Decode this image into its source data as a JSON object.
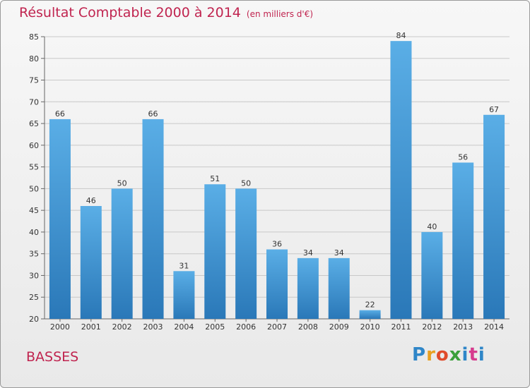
{
  "header": {
    "title": "Résultat Comptable 2000 à 2014",
    "subtitle": "(en milliers d'€)"
  },
  "footer": {
    "commune": "BASSES",
    "logo": "Proxiti"
  },
  "colors": {
    "bar_top": "#5aaee6",
    "bar_bottom": "#2a78b8",
    "title": "#c0244f",
    "grid": "#c8c8c8"
  },
  "chart_data": {
    "type": "bar",
    "categories": [
      "2000",
      "2001",
      "2002",
      "2003",
      "2004",
      "2005",
      "2006",
      "2007",
      "2008",
      "2009",
      "2010",
      "2011",
      "2012",
      "2013",
      "2014"
    ],
    "values": [
      66,
      46,
      50,
      66,
      31,
      51,
      50,
      36,
      34,
      34,
      22,
      84,
      40,
      56,
      67
    ],
    "ylim": [
      20,
      85
    ],
    "yticks": [
      20,
      25,
      30,
      35,
      40,
      45,
      50,
      55,
      60,
      65,
      70,
      75,
      80,
      85
    ],
    "grid": true,
    "data_labels": true
  }
}
